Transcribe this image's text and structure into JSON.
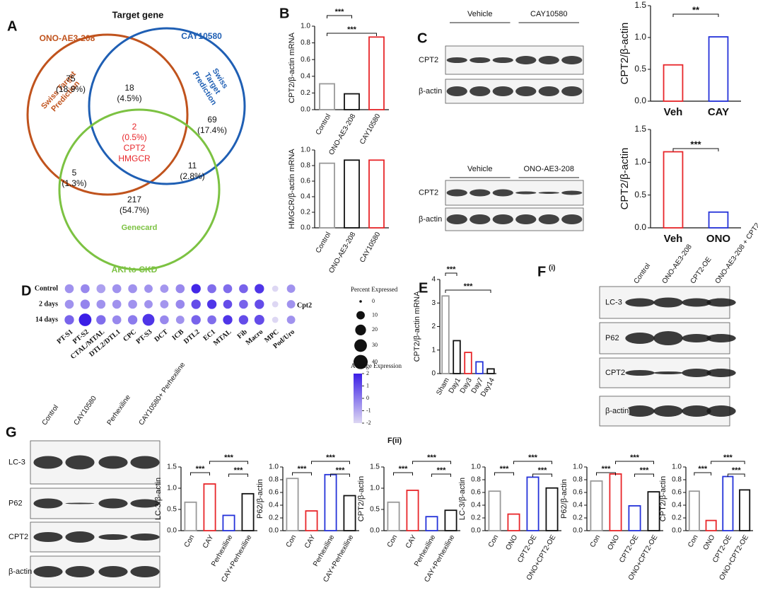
{
  "panel_labels": {
    "a": "A",
    "b": "B",
    "c": "C",
    "d": "D",
    "e": "E",
    "f": "F",
    "f_sub": "(i)",
    "g": "G",
    "fii": "F(ii)"
  },
  "venn": {
    "title": "Target gene",
    "sets": [
      {
        "name": "ONO-AE3-208",
        "source": [
          "Swiss Target",
          "Prediction"
        ],
        "color": "#c0531d"
      },
      {
        "name": "CAY10580",
        "source": [
          "Swiss",
          "Target",
          "Prediction"
        ],
        "color": "#1f5fb4"
      },
      {
        "name": "AKI to CKD",
        "source": [
          "Genecard"
        ],
        "color": "#7cc242"
      }
    ],
    "regions": [
      {
        "count": 75,
        "percent": "(18.9%)"
      },
      {
        "count": 18,
        "percent": "(4.5%)"
      },
      {
        "count": 69,
        "percent": "(17.4%)"
      },
      {
        "count": 2,
        "percent": "(0.5%)"
      },
      {
        "count": 5,
        "percent": "(1.3%)"
      },
      {
        "count": 11,
        "percent": "(2.8%)"
      },
      {
        "count": 217,
        "percent": "(54.7%)"
      }
    ],
    "shared_genes": [
      "CPT2",
      "HMGCR"
    ]
  },
  "blots": [
    {
      "groups": [
        "Vehicle",
        "CAY10580"
      ],
      "rows": [
        "CPT2",
        "β-actin"
      ]
    },
    {
      "groups": [
        "Vehicle",
        "ONO-AE3-208"
      ],
      "rows": [
        "CPT2",
        "β-actin"
      ]
    },
    {
      "columns": [
        "Control",
        "ONO-AE3-208",
        "CPT2-OE",
        "ONO-AE3-208 + CPT2-OE"
      ],
      "rows": [
        "LC-3",
        "P62",
        "CPT2",
        "β-actin"
      ]
    },
    {
      "columns": [
        "Control",
        "CAY10580",
        "Perhexiline",
        "CAY10580+ Perhexiline"
      ],
      "rows": [
        "LC-3",
        "P62",
        "CPT2",
        "β-actin"
      ]
    }
  ],
  "dotplot": {
    "rows": [
      "Control",
      "2 days",
      "14 days"
    ],
    "columns": [
      "PT-S1",
      "PT-S2",
      "CTAL/MTAL",
      "DTL2/DTL1",
      "CPC",
      "PT-S3",
      "DCT",
      "ICB",
      "DTL2",
      "EC1",
      "MTAL",
      "Fib",
      "Macro",
      "MPC",
      "Pod/Uro"
    ],
    "gene": "Cpt2",
    "percent": [
      [
        12,
        12,
        12,
        12,
        12,
        10,
        10,
        12,
        14,
        12,
        12,
        12,
        14,
        4,
        10
      ],
      [
        12,
        14,
        12,
        12,
        12,
        10,
        10,
        12,
        14,
        14,
        12,
        12,
        14,
        4,
        10
      ],
      [
        14,
        30,
        14,
        12,
        14,
        26,
        12,
        10,
        14,
        12,
        14,
        14,
        16,
        4,
        10
      ]
    ],
    "expression": [
      [
        -0.5,
        -0.3,
        -0.8,
        -0.5,
        -0.5,
        -0.5,
        -0.6,
        -0.3,
        1.8,
        0.3,
        0.3,
        0.5,
        1.5,
        -2,
        -0.5
      ],
      [
        -0.5,
        -0.2,
        -0.5,
        -0.5,
        -0.5,
        -0.5,
        -0.6,
        -0.3,
        1,
        1.5,
        1,
        0.5,
        1,
        -2,
        -0.5
      ],
      [
        0.5,
        2,
        0.3,
        -0.3,
        0,
        1.5,
        -0.3,
        -0.5,
        0.5,
        0.3,
        1.5,
        1,
        1,
        -2,
        -0.5
      ]
    ],
    "size_legend": {
      "title": "Percent Expressed",
      "values": [
        0,
        10,
        20,
        30,
        40
      ]
    },
    "color_legend": {
      "title": "Average Expression",
      "values": [
        2,
        1,
        0,
        -1,
        -2
      ],
      "colors": [
        "#ddd7f3",
        "#3b1ee6"
      ]
    }
  },
  "chart_data": [
    {
      "type": "bar",
      "y_label": "CPT2/β-actin mRNA",
      "categories": [
        "Control",
        "ONO-AE3-208",
        "CAY10580"
      ],
      "values": [
        0.31,
        0.19,
        0.87
      ],
      "colors": [
        "#999999",
        "#111111",
        "#e8262a"
      ],
      "ylim": [
        0,
        1
      ],
      "yticks": [
        {
          "value": 0,
          "label": "0.0"
        },
        {
          "value": 0.2,
          "label": "0.2"
        },
        {
          "value": 0.4,
          "label": "0.4"
        },
        {
          "value": 0.6,
          "label": "0.6"
        },
        {
          "value": 0.8,
          "label": "0.8"
        },
        {
          "value": 1,
          "label": "1.0"
        }
      ],
      "annotations": [
        "***",
        "***"
      ]
    },
    {
      "type": "bar",
      "y_label": "HMGCR/β-actin mRNA",
      "categories": [
        "Control",
        "ONO-AE3-208",
        "CAY10580"
      ],
      "values": [
        0.83,
        0.87,
        0.87
      ],
      "colors": [
        "#999999",
        "#111111",
        "#e8262a"
      ],
      "ylim": [
        0,
        1
      ],
      "yticks": [
        {
          "value": 0,
          "label": "0.0"
        },
        {
          "value": 0.2,
          "label": "0.2"
        },
        {
          "value": 0.4,
          "label": "0.4"
        },
        {
          "value": 0.6,
          "label": "0.6"
        },
        {
          "value": 0.8,
          "label": "0.8"
        },
        {
          "value": 1,
          "label": "1.0"
        }
      ],
      "annotations": []
    },
    {
      "type": "bar",
      "y_label": "CPT2/β-actin",
      "categories": [
        "Veh",
        "CAY"
      ],
      "values": [
        0.57,
        1.01
      ],
      "colors": [
        "#e8262a",
        "#2432d9"
      ],
      "ylim": [
        0,
        1.5
      ],
      "yticks": [
        {
          "value": 0,
          "label": "0.0"
        },
        {
          "value": 0.5,
          "label": "0.5"
        },
        {
          "value": 1,
          "label": "1.0"
        },
        {
          "value": 1.5,
          "label": "1.5"
        }
      ],
      "annotations": [
        "**"
      ]
    },
    {
      "type": "bar",
      "y_label": "CPT2/β-actin",
      "categories": [
        "Veh",
        "ONO"
      ],
      "values": [
        1.16,
        0.24
      ],
      "colors": [
        "#e8262a",
        "#2432d9"
      ],
      "ylim": [
        0,
        1.5
      ],
      "yticks": [
        {
          "value": 0,
          "label": "0.0"
        },
        {
          "value": 0.5,
          "label": "0.5"
        },
        {
          "value": 1,
          "label": "1.0"
        },
        {
          "value": 1.5,
          "label": "1.5"
        }
      ],
      "annotations": [
        "***"
      ]
    },
    {
      "type": "bar",
      "y_label": "CPT2/β-actin mRNA",
      "categories": [
        "Sham",
        "Day1",
        "Day3",
        "Day7",
        "Day14"
      ],
      "values": [
        3.3,
        1.4,
        0.9,
        0.5,
        0.2
      ],
      "colors": [
        "#999999",
        "#111111",
        "#e8262a",
        "#2432d9",
        "#111111"
      ],
      "ylim": [
        0,
        4
      ],
      "yticks": [
        0,
        1,
        2,
        3,
        4
      ],
      "annotations": [
        "***",
        "***"
      ]
    },
    {
      "type": "bar",
      "y_label": "LC-3/β-actin",
      "categories": [
        "Con",
        "CAY",
        "Perhexiline",
        "CAY+Perhexiline"
      ],
      "values": [
        0.67,
        1.1,
        0.36,
        0.87
      ],
      "colors": [
        "#999999",
        "#e8262a",
        "#2432d9",
        "#111111"
      ],
      "ylim": [
        0,
        1.5
      ],
      "yticks": [
        {
          "value": 0,
          "label": "0.0"
        },
        {
          "value": 0.5,
          "label": "0.5"
        },
        {
          "value": 1,
          "label": "1.0"
        },
        {
          "value": 1.5,
          "label": "1.5"
        }
      ],
      "annotations": [
        "***",
        "***",
        "***"
      ]
    },
    {
      "type": "bar",
      "y_label": "P62/β-actin",
      "categories": [
        "Con",
        "CAY",
        "Perhexiline",
        "CAY+Perhexiline"
      ],
      "values": [
        0.82,
        0.31,
        0.88,
        0.55
      ],
      "colors": [
        "#999999",
        "#e8262a",
        "#2432d9",
        "#111111"
      ],
      "ylim": [
        0,
        1
      ],
      "yticks": [
        {
          "value": 0,
          "label": "0.0"
        },
        {
          "value": 0.2,
          "label": "0.2"
        },
        {
          "value": 0.4,
          "label": "0.4"
        },
        {
          "value": 0.6,
          "label": "0.6"
        },
        {
          "value": 0.8,
          "label": "0.8"
        },
        {
          "value": 1,
          "label": "1.0"
        }
      ],
      "annotations": [
        "***",
        "***",
        "***"
      ]
    },
    {
      "type": "bar",
      "y_label": "CPT2/β-actin",
      "categories": [
        "Con",
        "CAY",
        "Perhexiline",
        "CAY+Perhexiline"
      ],
      "values": [
        0.67,
        0.95,
        0.33,
        0.48
      ],
      "colors": [
        "#999999",
        "#e8262a",
        "#2432d9",
        "#111111"
      ],
      "ylim": [
        0,
        1.5
      ],
      "yticks": [
        {
          "value": 0,
          "label": "0.0"
        },
        {
          "value": 0.5,
          "label": "0.5"
        },
        {
          "value": 1,
          "label": "1.0"
        },
        {
          "value": 1.5,
          "label": "1.5"
        }
      ],
      "annotations": [
        "***",
        "***",
        "***"
      ]
    },
    {
      "type": "bar",
      "y_label": "LC-3/β-actin",
      "categories": [
        "Con",
        "ONO",
        "CPT2-OE",
        "ONO+CPT2-OE"
      ],
      "values": [
        0.62,
        0.26,
        0.84,
        0.67
      ],
      "colors": [
        "#999999",
        "#e8262a",
        "#2432d9",
        "#111111"
      ],
      "ylim": [
        0,
        1
      ],
      "yticks": [
        {
          "value": 0,
          "label": "0.0"
        },
        {
          "value": 0.2,
          "label": "0.2"
        },
        {
          "value": 0.4,
          "label": "0.4"
        },
        {
          "value": 0.6,
          "label": "0.6"
        },
        {
          "value": 0.8,
          "label": "0.8"
        },
        {
          "value": 1,
          "label": "1.0"
        }
      ],
      "annotations": [
        "***",
        "***",
        "***"
      ]
    },
    {
      "type": "bar",
      "y_label": "P62/β-actin",
      "categories": [
        "Con",
        "ONO",
        "CPT2-OE",
        "ONO+CPT2-OE"
      ],
      "values": [
        0.78,
        0.89,
        0.39,
        0.61
      ],
      "colors": [
        "#999999",
        "#e8262a",
        "#2432d9",
        "#111111"
      ],
      "ylim": [
        0,
        1
      ],
      "yticks": [
        {
          "value": 0,
          "label": "0.0"
        },
        {
          "value": 0.2,
          "label": "0.2"
        },
        {
          "value": 0.4,
          "label": "0.4"
        },
        {
          "value": 0.6,
          "label": "0.6"
        },
        {
          "value": 0.8,
          "label": "0.8"
        },
        {
          "value": 1,
          "label": "1.0"
        }
      ],
      "annotations": [
        "***",
        "***",
        "***"
      ]
    },
    {
      "type": "bar",
      "y_label": "CPT2/β-actin",
      "categories": [
        "Con",
        "ONO",
        "CPT2-OE",
        "ONO+CPT2-OE"
      ],
      "values": [
        0.62,
        0.16,
        0.85,
        0.64
      ],
      "colors": [
        "#999999",
        "#e8262a",
        "#2432d9",
        "#111111"
      ],
      "ylim": [
        0,
        1
      ],
      "yticks": [
        {
          "value": 0,
          "label": "0.0"
        },
        {
          "value": 0.2,
          "label": "0.2"
        },
        {
          "value": 0.4,
          "label": "0.4"
        },
        {
          "value": 0.6,
          "label": "0.6"
        },
        {
          "value": 0.8,
          "label": "0.8"
        },
        {
          "value": 1,
          "label": "1.0"
        }
      ],
      "annotations": [
        "***",
        "***",
        "***"
      ]
    }
  ]
}
